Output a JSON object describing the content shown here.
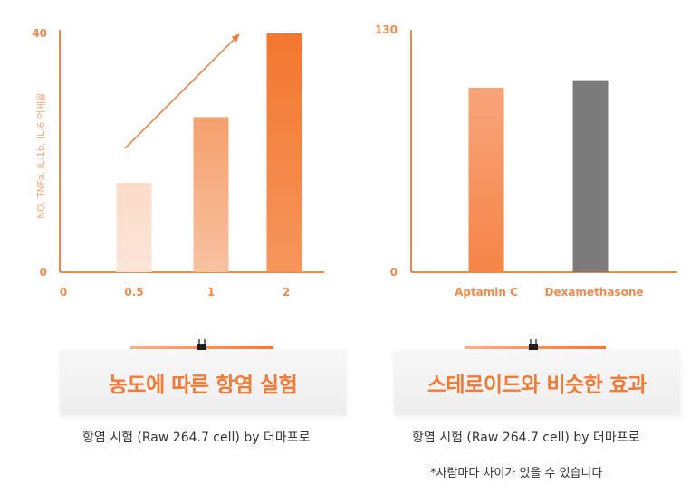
{
  "colors": {
    "accent": "#f07a36",
    "bar_light": "#fad6c0",
    "bar_mid": "#f6a775",
    "bar_dark": "#f27d3a",
    "bar_gray": "#7b7b7b"
  },
  "chart_data": [
    {
      "type": "bar",
      "title": "",
      "ylabel": "NO, TNFa, IL-1b, IL-6 억제율",
      "xlabel": "",
      "x_ticks": [
        "0",
        "0.5",
        "1",
        "2"
      ],
      "categories": [
        "0.5",
        "1",
        "2"
      ],
      "values": [
        15,
        26,
        40
      ],
      "ylim": [
        0,
        40
      ],
      "y_ticks": [
        "0",
        "40"
      ],
      "trend_arrow": true,
      "grid": false
    },
    {
      "type": "bar",
      "title": "",
      "ylabel": "",
      "xlabel": "",
      "categories": [
        "Aptamin C",
        "Dexamethasone"
      ],
      "values": [
        99,
        103
      ],
      "ylim": [
        0,
        130
      ],
      "y_ticks": [
        "0",
        "130"
      ],
      "grid": false
    }
  ],
  "cards": {
    "left_title": "농도에 따른 항염 실험",
    "right_title": "스테로이드와 비슷한 효과"
  },
  "captions": {
    "left": "항염 시험 (Raw 264.7 cell) by 더마프로",
    "right": "항염 시험 (Raw 264.7 cell) by 더마프로",
    "note": "*사람마다 차이가 있을 수 있습니다"
  }
}
